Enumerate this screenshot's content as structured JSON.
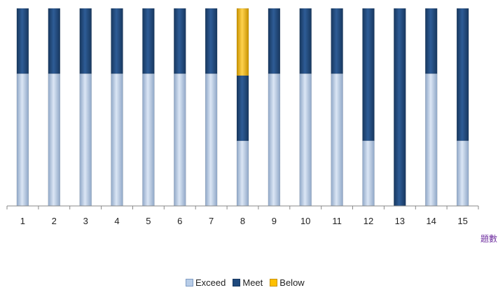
{
  "chart_data": {
    "type": "bar",
    "stacked": true,
    "percent_stacked": true,
    "categories": [
      "1",
      "2",
      "3",
      "4",
      "5",
      "6",
      "7",
      "8",
      "9",
      "10",
      "11",
      "12",
      "13",
      "14",
      "15"
    ],
    "series": [
      {
        "name": "Exceed",
        "color": "#b8cde8",
        "values": [
          67,
          67,
          67,
          67,
          67,
          67,
          67,
          33,
          67,
          67,
          67,
          33,
          0,
          67,
          33
        ]
      },
      {
        "name": "Meet",
        "color": "#1f497d",
        "values": [
          33,
          33,
          33,
          33,
          33,
          33,
          33,
          33,
          33,
          33,
          33,
          67,
          100,
          33,
          67
        ]
      },
      {
        "name": "Below",
        "color": "#ffc000",
        "values": [
          0,
          0,
          0,
          0,
          0,
          0,
          0,
          34,
          0,
          0,
          0,
          0,
          0,
          0,
          0
        ]
      }
    ],
    "xlabel": "題數",
    "ylabel": "",
    "ylim": [
      0,
      100
    ],
    "grid": false,
    "legend_position": "bottom"
  }
}
